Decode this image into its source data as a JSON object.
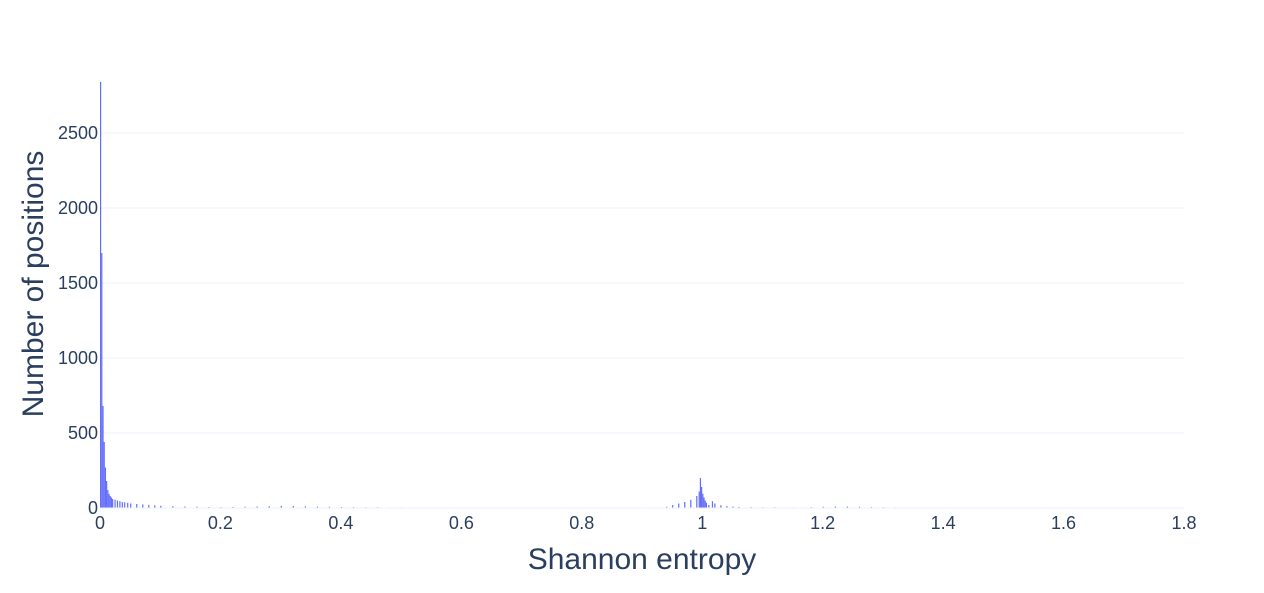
{
  "chart_data": {
    "type": "bar",
    "subtype": "histogram",
    "title": "",
    "xlabel": "Shannon entropy",
    "ylabel": "Number of positions",
    "xlim": [
      0,
      1.8
    ],
    "ylim": [
      0,
      2840
    ],
    "x_ticks": [
      0,
      0.2,
      0.4,
      0.6,
      0.8,
      1,
      1.2,
      1.4,
      1.6,
      1.8
    ],
    "x_tick_labels": [
      "0",
      "0.2",
      "0.4",
      "0.6",
      "0.8",
      "1",
      "1.2",
      "1.4",
      "1.6",
      "1.8"
    ],
    "y_ticks": [
      0,
      500,
      1000,
      1500,
      2000,
      2500
    ],
    "y_tick_labels": [
      "0",
      "500",
      "1000",
      "1500",
      "2000",
      "2500"
    ],
    "grid": true,
    "bar_color": "#636efa",
    "grid_color": "#ebf0f8",
    "text_color": "#2a3f5f",
    "bin_width": 0.002,
    "series": [
      {
        "name": "Number of positions",
        "x": [
          0.0,
          0.002,
          0.004,
          0.006,
          0.008,
          0.01,
          0.012,
          0.014,
          0.016,
          0.018,
          0.02,
          0.024,
          0.028,
          0.032,
          0.036,
          0.04,
          0.045,
          0.05,
          0.06,
          0.07,
          0.08,
          0.09,
          0.1,
          0.12,
          0.14,
          0.16,
          0.18,
          0.2,
          0.22,
          0.24,
          0.26,
          0.28,
          0.3,
          0.32,
          0.34,
          0.36,
          0.38,
          0.4,
          0.42,
          0.44,
          0.46,
          0.48,
          0.5,
          0.55,
          0.6,
          0.65,
          0.7,
          0.75,
          0.8,
          0.85,
          0.9,
          0.94,
          0.95,
          0.96,
          0.97,
          0.98,
          0.99,
          0.994,
          0.996,
          0.998,
          1.0,
          1.002,
          1.004,
          1.006,
          1.01,
          1.016,
          1.02,
          1.03,
          1.04,
          1.05,
          1.06,
          1.08,
          1.1,
          1.12,
          1.15,
          1.18,
          1.2,
          1.22,
          1.24,
          1.26,
          1.28,
          1.3,
          1.32,
          1.35,
          1.4,
          1.45,
          1.48,
          1.5,
          1.55,
          1.6,
          1.65,
          1.7,
          1.75
        ],
        "values": [
          2840,
          1700,
          680,
          440,
          270,
          180,
          120,
          95,
          80,
          70,
          60,
          55,
          50,
          45,
          40,
          38,
          35,
          30,
          27,
          24,
          21,
          18,
          15,
          12,
          10,
          8,
          7,
          6,
          7,
          8,
          10,
          12,
          14,
          13,
          11,
          9,
          8,
          7,
          6,
          5,
          5,
          4,
          4,
          3,
          3,
          3,
          3,
          3,
          3,
          3,
          4,
          8,
          20,
          30,
          40,
          55,
          80,
          110,
          200,
          140,
          95,
          70,
          50,
          35,
          20,
          45,
          30,
          18,
          12,
          9,
          7,
          6,
          5,
          5,
          4,
          6,
          8,
          10,
          9,
          8,
          6,
          5,
          4,
          3,
          3,
          2,
          3,
          2,
          2,
          2,
          1,
          1,
          1
        ]
      }
    ]
  }
}
